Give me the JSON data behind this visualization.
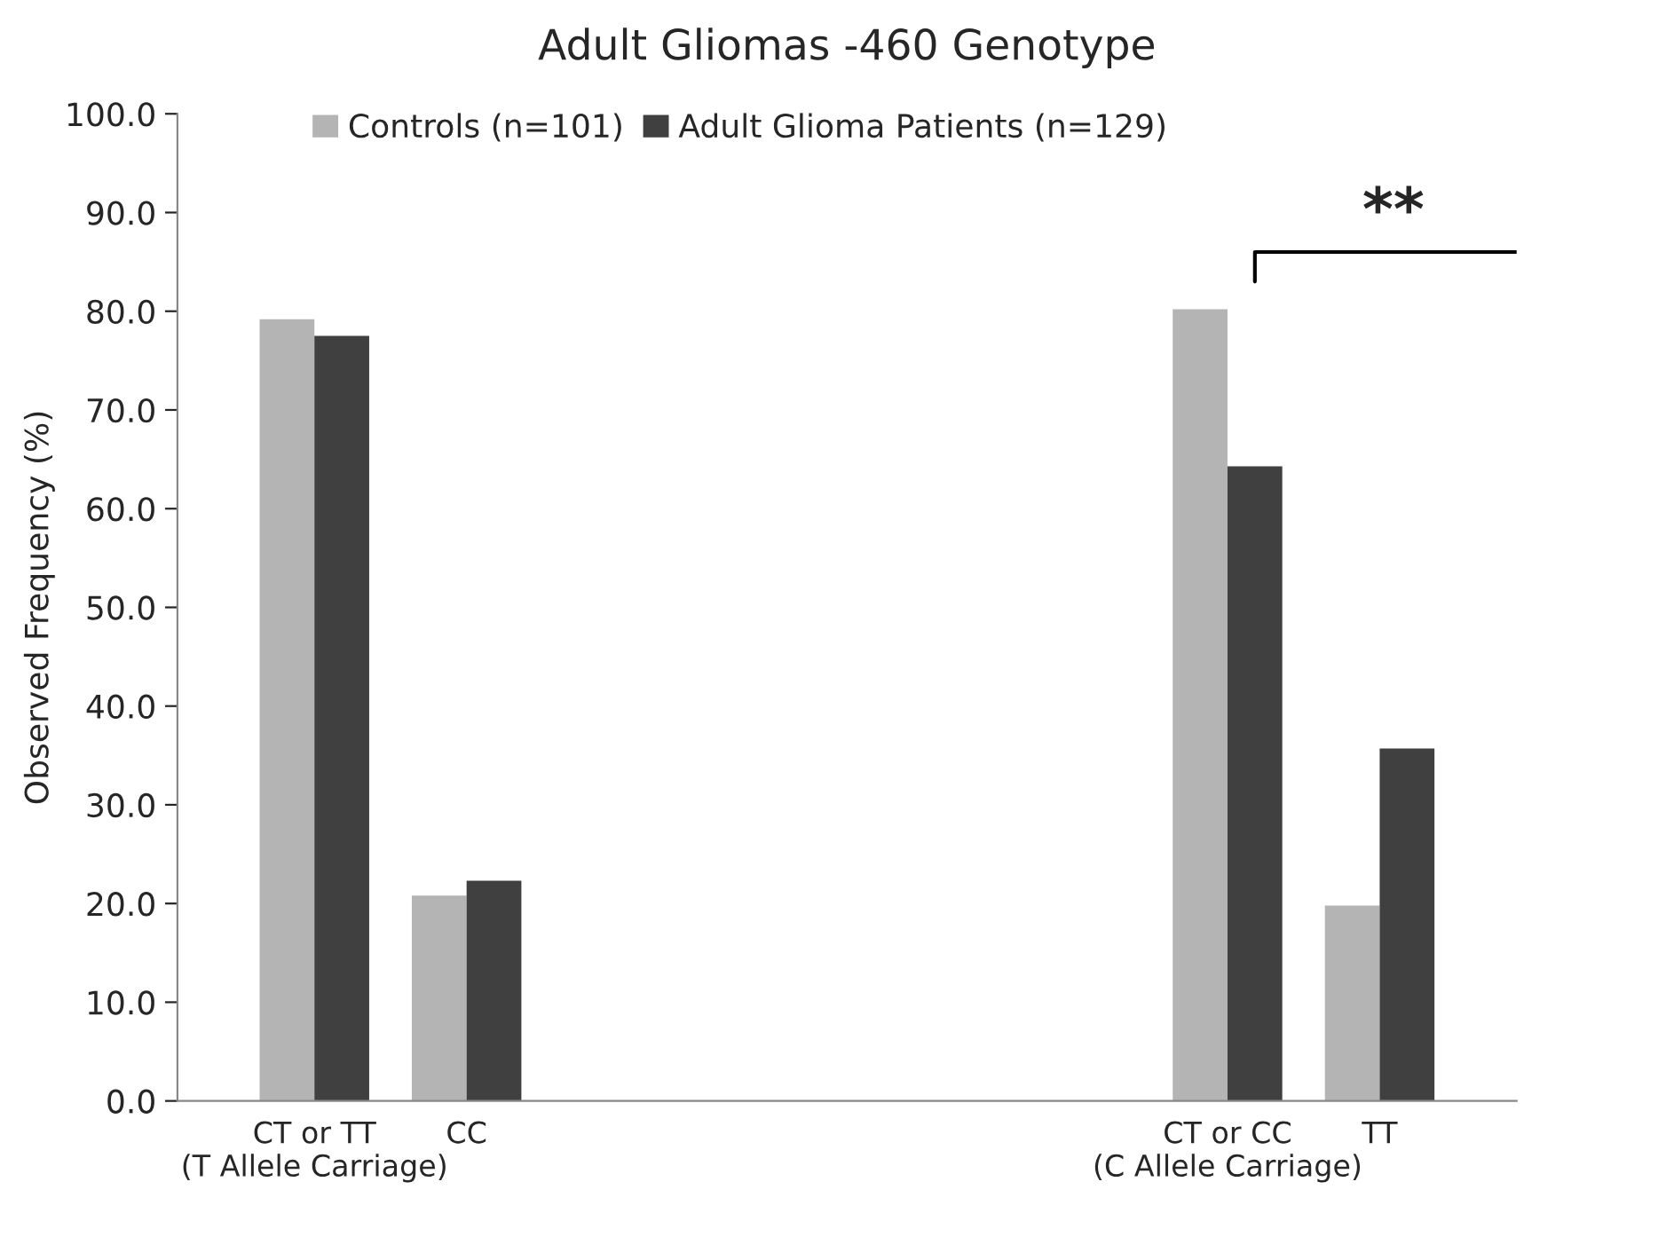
{
  "chart_data": {
    "type": "bar",
    "title": "Adult Gliomas -460 Genotype",
    "ylabel": "Observed Frequency (%)",
    "categories": [
      "CT or TT\n(T Allele Carriage)",
      "CC",
      null,
      null,
      null,
      null,
      "CT or CC\n(C Allele Carriage)",
      "TT"
    ],
    "series": [
      {
        "name": "Controls (n=101)",
        "color": "#b4b4b4",
        "values": [
          79.2,
          20.8,
          null,
          null,
          null,
          null,
          80.2,
          19.8
        ]
      },
      {
        "name": "Adult Glioma Patients (n=129)",
        "color": "#404040",
        "values": [
          77.5,
          22.3,
          null,
          null,
          null,
          null,
          64.3,
          35.7
        ]
      }
    ],
    "ylim": [
      0,
      100
    ],
    "yticks": [
      {
        "value": 0,
        "label": "0.0"
      },
      {
        "value": 10,
        "label": "10.0"
      },
      {
        "value": 20,
        "label": "20.0"
      },
      {
        "value": 30,
        "label": "30.0"
      },
      {
        "value": 40,
        "label": "40.0"
      },
      {
        "value": 50,
        "label": "50.0"
      },
      {
        "value": 60,
        "label": "60.0"
      },
      {
        "value": 70,
        "label": "70.0"
      },
      {
        "value": 80,
        "label": "80.0"
      },
      {
        "value": 90,
        "label": "90.0"
      },
      {
        "value": 100,
        "label": "100.0"
      }
    ],
    "annotations": [
      "**"
    ],
    "legend": "top",
    "grid": false
  }
}
